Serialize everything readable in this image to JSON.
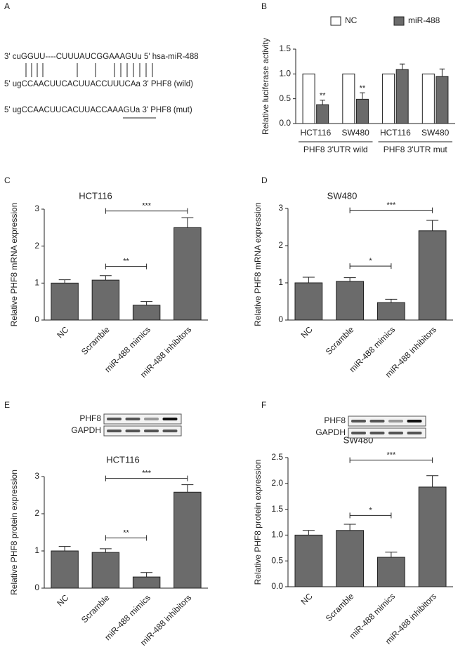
{
  "sequence_alignment": {
    "panel": "A",
    "lines": [
      "3' cuGGUU----CUUUAUCGGAAAGUu 5' hsa-miR-488",
      "5' ugCCAACUUCACUUACCUUUCAa 3' PHF8 (wild)",
      "5' ugCCAACUUCACUUACCAAAGUa 3' PHF8 (mut)"
    ]
  },
  "chart_data": [
    {
      "type": "bar",
      "panel": "B",
      "y_label": "Relative luciferase activity",
      "categories": [
        "HCT116",
        "SW480",
        "HCT116",
        "SW480"
      ],
      "groups": [
        "PHF8 3'UTR wild",
        "PHF8 3'UTR mut"
      ],
      "series": [
        {
          "name": "NC",
          "color": "#ffffff",
          "values": [
            1,
            1,
            1,
            1
          ]
        },
        {
          "name": "miR-488",
          "color": "#6b6b6b",
          "values": [
            0.38,
            0.49,
            1.09,
            0.95
          ],
          "errors": [
            0.09,
            0.13,
            0.11,
            0.15
          ],
          "significance": [
            "**",
            "**",
            null,
            null
          ]
        }
      ],
      "ylim": [
        0,
        1.5
      ],
      "yticks": [
        {
          "value": 0,
          "label": "0.0"
        },
        {
          "value": 0.5,
          "label": "0.5"
        },
        {
          "value": 1,
          "label": "1.0"
        },
        {
          "value": 1.5,
          "label": "1.5"
        }
      ]
    },
    {
      "type": "bar",
      "panel": "C",
      "title": "HCT116",
      "y_label": "Relative PHF8 mRNA expression",
      "categories": [
        "NC",
        "Scramble",
        "miR-488 mimics",
        "miR-488 inhibitors"
      ],
      "series": [
        {
          "color": "#6b6b6b",
          "values": [
            1.0,
            1.08,
            0.4,
            2.5
          ],
          "errors": [
            0.09,
            0.12,
            0.1,
            0.27
          ]
        }
      ],
      "ylim": [
        0,
        3
      ],
      "yticks": [
        0,
        1,
        2,
        3
      ],
      "brackets": [
        {
          "from": "Scramble",
          "to": "miR-488 mimics",
          "y": 1.45,
          "label": "**"
        },
        {
          "from": "Scramble",
          "to": "miR-488 inhibitors",
          "y": 2.95,
          "label": "***"
        }
      ]
    },
    {
      "type": "bar",
      "panel": "D",
      "title": "SW480",
      "y_label": "Relative PHF8 mRNA expression",
      "categories": [
        "NC",
        "Scramble",
        "miR-488 mimics",
        "miR-488 inhibitors"
      ],
      "series": [
        {
          "color": "#6b6b6b",
          "values": [
            1.0,
            1.04,
            0.47,
            2.4
          ],
          "errors": [
            0.15,
            0.1,
            0.09,
            0.28
          ]
        }
      ],
      "ylim": [
        0,
        3
      ],
      "yticks": [
        0,
        1,
        2,
        3
      ],
      "brackets": [
        {
          "from": "Scramble",
          "to": "miR-488 mimics",
          "y": 1.45,
          "label": "*"
        },
        {
          "from": "Scramble",
          "to": "miR-488 inhibitors",
          "y": 2.95,
          "label": "***"
        }
      ]
    },
    {
      "type": "bar",
      "panel": "E",
      "title": "HCT116",
      "y_label": "Relative PHF8 protein expression",
      "blot": [
        "PHF8",
        "GAPDH"
      ],
      "categories": [
        "NC",
        "Scramble",
        "miR-488 mimics",
        "miR-488 inhibitors"
      ],
      "series": [
        {
          "color": "#6b6b6b",
          "values": [
            1.0,
            0.96,
            0.3,
            2.58
          ],
          "errors": [
            0.12,
            0.1,
            0.12,
            0.2
          ]
        }
      ],
      "ylim": [
        0,
        3
      ],
      "yticks": [
        0,
        1,
        2,
        3
      ],
      "brackets": [
        {
          "from": "Scramble",
          "to": "miR-488 mimics",
          "y": 1.35,
          "label": "**"
        },
        {
          "from": "Scramble",
          "to": "miR-488 inhibitors",
          "y": 2.95,
          "label": "***"
        }
      ]
    },
    {
      "type": "bar",
      "panel": "F",
      "title": "SW480",
      "y_label": "Relative PHF8 protein expression",
      "blot": [
        "PHF8",
        "GAPDH"
      ],
      "categories": [
        "NC",
        "Scramble",
        "miR-488 mimics",
        "miR-488 inhibitors"
      ],
      "series": [
        {
          "color": "#6b6b6b",
          "values": [
            1.0,
            1.09,
            0.57,
            1.93
          ],
          "errors": [
            0.09,
            0.12,
            0.1,
            0.22
          ]
        }
      ],
      "ylim": [
        0,
        2.5
      ],
      "yticks": [
        {
          "value": 0,
          "label": "0.0"
        },
        {
          "value": 0.5,
          "label": "0.5"
        },
        {
          "value": 1,
          "label": "1.0"
        },
        {
          "value": 1.5,
          "label": "1.5"
        },
        {
          "value": 2,
          "label": "2.0"
        },
        {
          "value": 2.5,
          "label": "2.5"
        }
      ],
      "brackets": [
        {
          "from": "Scramble",
          "to": "miR-488 mimics",
          "y": 1.38,
          "label": "*"
        },
        {
          "from": "Scramble",
          "to": "miR-488 inhibitors",
          "y": 2.45,
          "label": "***"
        }
      ]
    }
  ]
}
